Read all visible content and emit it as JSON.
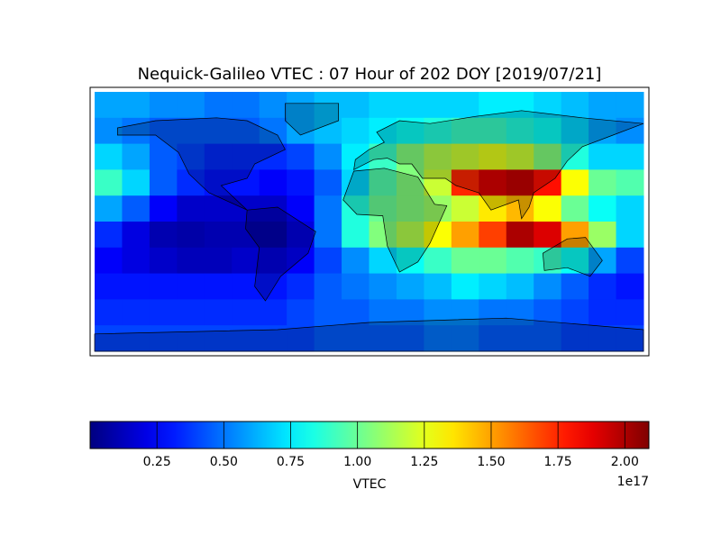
{
  "chart_data": {
    "type": "heatmap",
    "title": "Nequick-Galileo VTEC : 07 Hour of 202 DOY [2019/07/21]",
    "z": [
      [
        0.6,
        0.6,
        0.55,
        0.55,
        0.5,
        0.5,
        0.55,
        0.6,
        0.65,
        0.65,
        0.7,
        0.7,
        0.7,
        0.7,
        0.75,
        0.75,
        0.7,
        0.65,
        0.6,
        0.6
      ],
      [
        0.55,
        0.5,
        0.45,
        0.45,
        0.45,
        0.45,
        0.5,
        0.6,
        0.65,
        0.7,
        0.75,
        0.8,
        0.85,
        0.9,
        0.9,
        0.85,
        0.8,
        0.7,
        0.6,
        0.55
      ],
      [
        0.7,
        0.6,
        0.45,
        0.4,
        0.35,
        0.35,
        0.35,
        0.4,
        0.55,
        0.75,
        0.9,
        1.05,
        1.15,
        1.2,
        1.25,
        1.2,
        1.05,
        0.85,
        0.7,
        0.7
      ],
      [
        0.9,
        0.7,
        0.45,
        0.35,
        0.3,
        0.3,
        0.25,
        0.3,
        0.45,
        0.7,
        0.95,
        1.05,
        1.2,
        1.75,
        1.9,
        1.95,
        1.8,
        1.3,
        1.0,
        0.95
      ],
      [
        0.6,
        0.45,
        0.25,
        0.15,
        0.15,
        0.15,
        0.15,
        0.25,
        0.5,
        0.85,
        1.0,
        1.05,
        1.1,
        1.2,
        1.35,
        1.45,
        1.3,
        1.0,
        0.8,
        0.7
      ],
      [
        0.35,
        0.2,
        0.1,
        0.08,
        0.1,
        0.1,
        0.1,
        0.2,
        0.5,
        0.85,
        1.05,
        1.15,
        1.3,
        1.5,
        1.7,
        2.0,
        1.9,
        1.5,
        1.1,
        0.7
      ],
      [
        0.25,
        0.2,
        0.15,
        0.12,
        0.12,
        0.15,
        0.2,
        0.25,
        0.4,
        0.55,
        0.7,
        0.8,
        0.9,
        1.0,
        1.0,
        0.95,
        0.9,
        0.8,
        0.6,
        0.4
      ],
      [
        0.3,
        0.3,
        0.3,
        0.3,
        0.3,
        0.3,
        0.3,
        0.35,
        0.45,
        0.5,
        0.55,
        0.6,
        0.65,
        0.75,
        0.7,
        0.65,
        0.55,
        0.45,
        0.35,
        0.3
      ],
      [
        0.35,
        0.35,
        0.35,
        0.35,
        0.35,
        0.35,
        0.35,
        0.4,
        0.45,
        0.45,
        0.5,
        0.5,
        0.55,
        0.55,
        0.5,
        0.5,
        0.45,
        0.4,
        0.35,
        0.35
      ],
      [
        0.4,
        0.4,
        0.4,
        0.4,
        0.4,
        0.4,
        0.4,
        0.4,
        0.45,
        0.45,
        0.45,
        0.45,
        0.5,
        0.5,
        0.45,
        0.45,
        0.45,
        0.4,
        0.4,
        0.4
      ]
    ],
    "colorbar": {
      "label": "VTEC",
      "offset": "1e17",
      "clim": [
        0,
        2.09
      ],
      "ticks": [
        0.25,
        {
          "value": 0.5,
          "label": "0.50"
        },
        0.75,
        {
          "value": 1,
          "label": "1.00"
        },
        1.25,
        {
          "value": 1.5,
          "label": "1.50"
        },
        1.75,
        {
          "value": 2,
          "label": "2.00"
        }
      ]
    }
  }
}
